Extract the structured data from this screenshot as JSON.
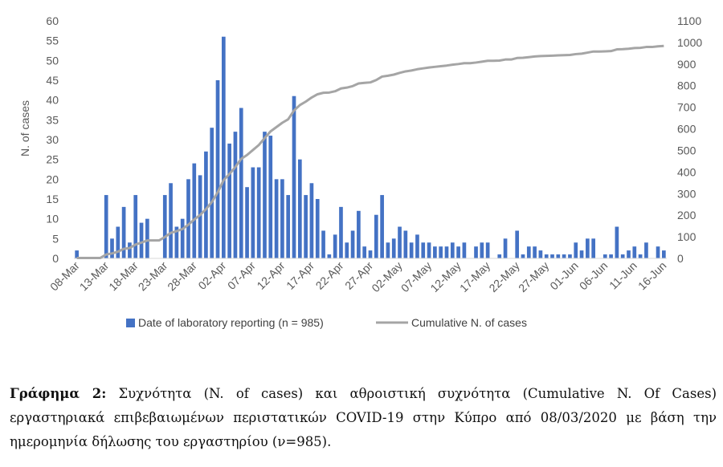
{
  "chart_data": {
    "type": "bar",
    "xlabel": "",
    "ylabel": "N. of cases",
    "y2label": "",
    "ylim": [
      0,
      60
    ],
    "y2lim": [
      0,
      1100
    ],
    "y_ticks": [
      0,
      5,
      10,
      15,
      20,
      25,
      30,
      35,
      40,
      45,
      50,
      55,
      60
    ],
    "y2_ticks": [
      0,
      100,
      200,
      300,
      400,
      500,
      600,
      700,
      800,
      900,
      1000,
      1100
    ],
    "x_tick_labels": [
      "08-Mar",
      "13-Mar",
      "18-Mar",
      "23-Mar",
      "28-Mar",
      "02-Apr",
      "07-Apr",
      "12-Apr",
      "17-Apr",
      "22-Apr",
      "27-Apr",
      "02-May",
      "07-May",
      "12-May",
      "17-May",
      "22-May",
      "27-May",
      "01-Jun",
      "06-Jun",
      "11-Jun",
      "16-Jun"
    ],
    "x_start": "08-Mar",
    "x_end": "16-Jun",
    "gridlines": false,
    "legend_position": "bottom",
    "series": [
      {
        "name": "Date of laboratory reporting (n = 985)",
        "type": "bar",
        "axis": "left",
        "color": "#4472C4",
        "values": [
          2,
          0,
          0,
          0,
          0,
          16,
          5,
          8,
          13,
          4,
          16,
          9,
          10,
          0,
          0,
          16,
          19,
          8,
          10,
          20,
          24,
          21,
          27,
          33,
          45,
          56,
          29,
          32,
          38,
          18,
          23,
          23,
          32,
          31,
          20,
          20,
          16,
          41,
          25,
          16,
          19,
          15,
          7,
          1,
          6,
          13,
          4,
          7,
          12,
          3,
          2,
          11,
          16,
          4,
          5,
          8,
          7,
          4,
          6,
          4,
          4,
          3,
          3,
          3,
          4,
          3,
          4,
          0,
          3,
          4,
          4,
          0,
          1,
          5,
          0,
          7,
          1,
          3,
          3,
          2,
          1,
          1,
          1,
          1,
          1,
          4,
          2,
          5,
          5,
          0,
          1,
          1,
          8,
          1,
          2,
          3,
          1,
          4,
          0,
          3,
          2
        ]
      },
      {
        "name": "Cumulative N. of cases",
        "type": "line",
        "axis": "right",
        "color": "#A5A5A5",
        "values": [
          2,
          2,
          2,
          2,
          2,
          18,
          23,
          31,
          44,
          48,
          64,
          73,
          83,
          83,
          83,
          99,
          118,
          126,
          136,
          156,
          180,
          201,
          228,
          261,
          306,
          362,
          391,
          423,
          461,
          479,
          502,
          525,
          557,
          588,
          608,
          628,
          644,
          685,
          710,
          726,
          745,
          760,
          767,
          768,
          774,
          787,
          791,
          798,
          810,
          813,
          815,
          826,
          842,
          846,
          851,
          859,
          866,
          870,
          876,
          880,
          884,
          887,
          890,
          893,
          897,
          900,
          904,
          904,
          907,
          911,
          915,
          915,
          916,
          921,
          921,
          928,
          929,
          932,
          935,
          937,
          938,
          939,
          940,
          941,
          942,
          946,
          948,
          953,
          958,
          958,
          959,
          960,
          968,
          969,
          971,
          974,
          975,
          979,
          979,
          982,
          984
        ]
      }
    ]
  },
  "caption": {
    "label": "Γράφημα 2:",
    "text": " Συχνότητα (N. of cases) και αθροιστική συχνότητα (Cumulative N. Of Cases) εργαστηριακά επιβεβαιωμένων περιστατικών COVID-19 στην Κύπρο από 08/03/2020 με βάση την ημερομηνία δήλωσης του εργαστηρίου (ν=985)."
  }
}
